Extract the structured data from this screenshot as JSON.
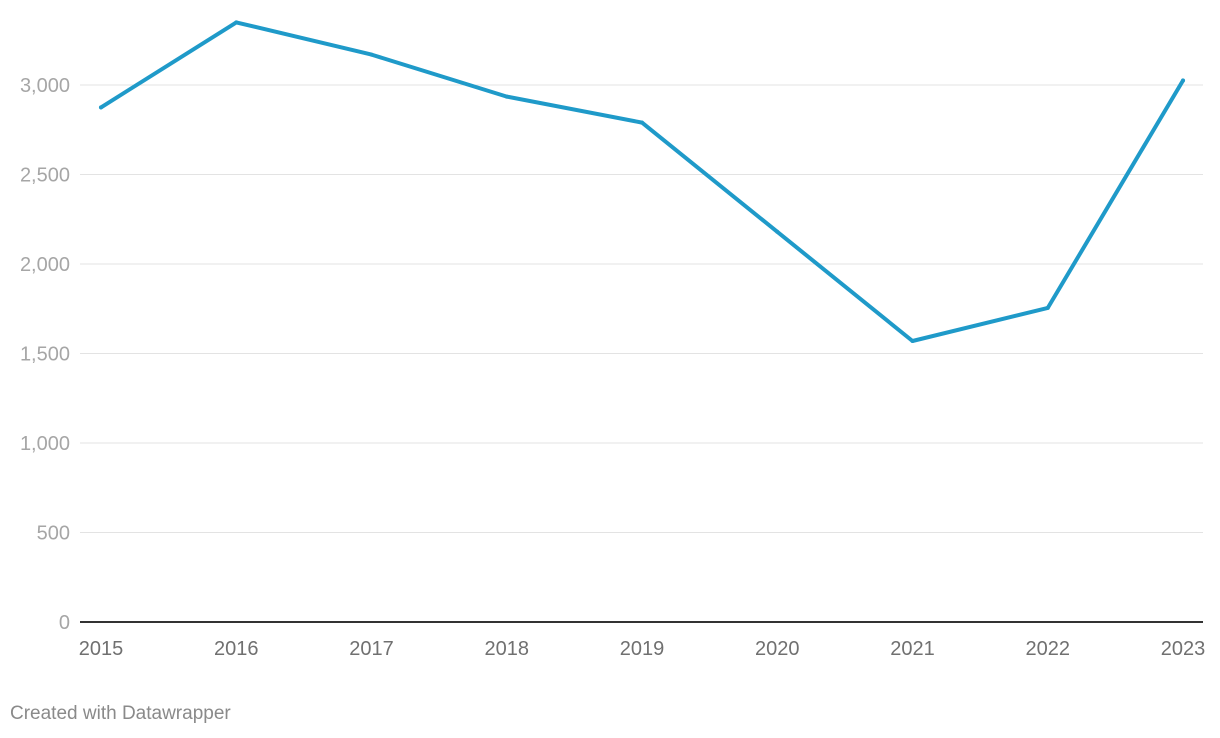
{
  "chart_data": {
    "type": "line",
    "x": [
      "2015",
      "2016",
      "2017",
      "2018",
      "2019",
      "2020",
      "2021",
      "2022",
      "2023"
    ],
    "series": [
      {
        "values": [
          2875,
          3350,
          3170,
          2935,
          2790,
          2180,
          1570,
          1755,
          3025
        ]
      }
    ],
    "ylim": [
      0,
      3350
    ],
    "yticks": [
      0,
      500,
      1000,
      1500,
      2000,
      2500,
      3000
    ],
    "ytick_labels": [
      "0",
      "500",
      "1,000",
      "1,500",
      "2,000",
      "2,500",
      "3,000"
    ],
    "grid": true,
    "line_color": "#1f9ac9"
  },
  "footer": {
    "credit": "Created with Datawrapper"
  }
}
